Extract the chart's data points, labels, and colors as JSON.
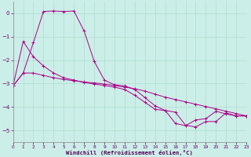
{
  "xlabel": "Windchill (Refroidissement éolien,°C)",
  "xlim": [
    0,
    23
  ],
  "ylim": [
    -5.5,
    0.5
  ],
  "yticks": [
    0,
    -1,
    -2,
    -3,
    -4,
    -5
  ],
  "xticks": [
    0,
    1,
    2,
    3,
    4,
    5,
    6,
    7,
    8,
    9,
    10,
    11,
    12,
    13,
    14,
    15,
    16,
    17,
    18,
    19,
    20,
    21,
    22,
    23
  ],
  "bg_color": "#cceee8",
  "grid_color": "#aaddcc",
  "line_color": "#aa0088",
  "line1_x": [
    0,
    1,
    2,
    3,
    4,
    5,
    6,
    7,
    8,
    9,
    10,
    11,
    12,
    13,
    14,
    15,
    16,
    17,
    18,
    19,
    20,
    21,
    22,
    23
  ],
  "line1_y": [
    -3.1,
    -2.55,
    -2.55,
    -2.65,
    -2.75,
    -2.82,
    -2.88,
    -2.93,
    -2.97,
    -3.02,
    -3.08,
    -3.15,
    -3.22,
    -3.32,
    -3.45,
    -3.58,
    -3.68,
    -3.78,
    -3.88,
    -3.98,
    -4.08,
    -4.18,
    -4.28,
    -4.38
  ],
  "line2_x": [
    0,
    1,
    2,
    3,
    4,
    5,
    6,
    7,
    8,
    9,
    10,
    11,
    12,
    13,
    14,
    15,
    16,
    17,
    18,
    19,
    20,
    21,
    22,
    23
  ],
  "line2_y": [
    -3.1,
    -1.2,
    -1.85,
    -2.25,
    -2.55,
    -2.75,
    -2.85,
    -2.95,
    -3.02,
    -3.08,
    -3.15,
    -3.25,
    -3.5,
    -3.8,
    -4.1,
    -4.15,
    -4.7,
    -4.8,
    -4.55,
    -4.5,
    -4.18,
    -4.3,
    -4.38,
    -4.38
  ],
  "line3_x": [
    0,
    1,
    2,
    3,
    4,
    5,
    6,
    7,
    8,
    9,
    10,
    11,
    12,
    13,
    14,
    15,
    16,
    17,
    18,
    19,
    20,
    21,
    22,
    23
  ],
  "line3_y": [
    -3.1,
    -2.55,
    -1.25,
    0.08,
    0.1,
    0.08,
    0.1,
    -0.75,
    -2.05,
    -2.85,
    -3.05,
    -3.1,
    -3.25,
    -3.6,
    -3.95,
    -4.15,
    -4.22,
    -4.78,
    -4.85,
    -4.62,
    -4.62,
    -4.25,
    -4.38,
    -4.38
  ]
}
